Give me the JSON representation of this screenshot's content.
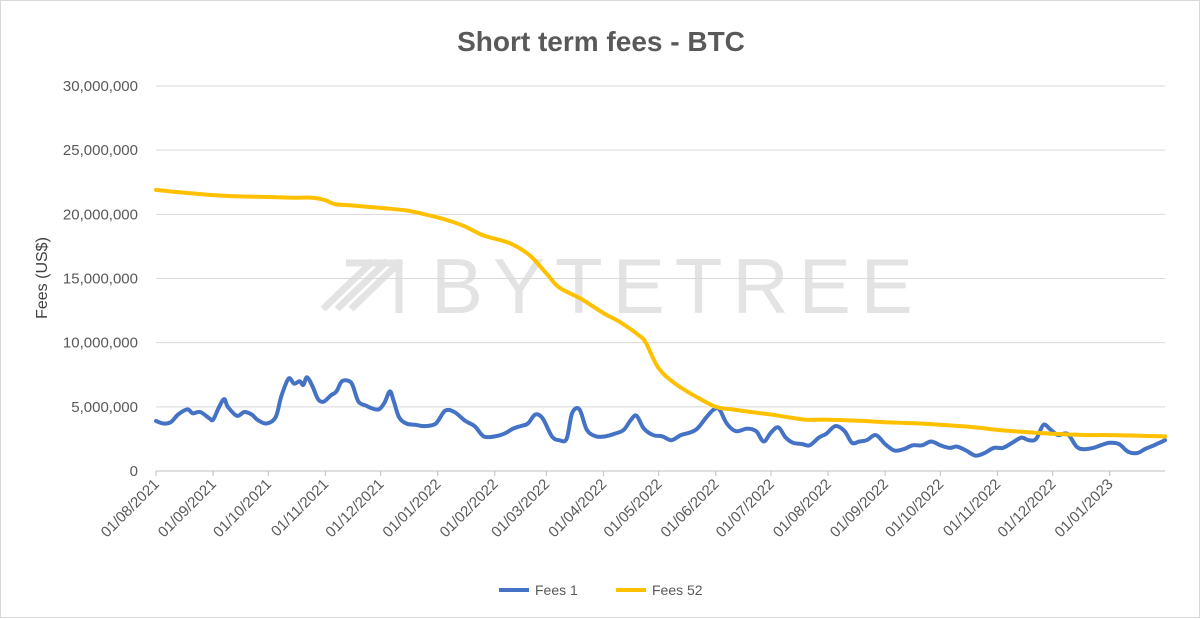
{
  "chart_data": {
    "type": "line",
    "title": "Short term fees - BTC",
    "xlabel": "",
    "ylabel": "Fees (US$)",
    "ylim": [
      0,
      30000000
    ],
    "yticks": [
      0,
      5000000,
      10000000,
      15000000,
      20000000,
      25000000,
      30000000
    ],
    "ytick_labels": [
      "0",
      "5,000,000",
      "10,000,000",
      "15,000,000",
      "20,000,000",
      "25,000,000",
      "30,000,000"
    ],
    "xlim": [
      "2021-08-01",
      "2023-01-31"
    ],
    "xticks": [
      "2021-08-01",
      "2021-09-01",
      "2021-10-01",
      "2021-11-01",
      "2021-12-01",
      "2022-01-01",
      "2022-02-01",
      "2022-03-01",
      "2022-04-01",
      "2022-05-01",
      "2022-06-01",
      "2022-07-01",
      "2022-08-01",
      "2022-09-01",
      "2022-10-01",
      "2022-11-01",
      "2022-12-01",
      "2023-01-01"
    ],
    "xtick_labels": [
      "01/08/2021",
      "01/09/2021",
      "01/10/2021",
      "01/11/2021",
      "01/12/2021",
      "01/01/2022",
      "01/02/2022",
      "01/03/2022",
      "01/04/2022",
      "01/05/2022",
      "01/06/2022",
      "01/07/2022",
      "01/08/2022",
      "01/09/2022",
      "01/10/2022",
      "01/11/2022",
      "01/12/2022",
      "01/01/2023"
    ],
    "grid": "horizontal",
    "legend": "bottom",
    "watermark": "BYTETREE",
    "series": [
      {
        "name": "Fees 1",
        "color": "#4472c4",
        "points": [
          [
            "2021-08-01",
            3900000
          ],
          [
            "2021-08-05",
            3700000
          ],
          [
            "2021-08-09",
            3800000
          ],
          [
            "2021-08-13",
            4400000
          ],
          [
            "2021-08-18",
            4800000
          ],
          [
            "2021-08-21",
            4500000
          ],
          [
            "2021-08-25",
            4600000
          ],
          [
            "2021-08-30",
            4100000
          ],
          [
            "2021-09-01",
            4000000
          ],
          [
            "2021-09-04",
            4900000
          ],
          [
            "2021-09-07",
            5600000
          ],
          [
            "2021-09-09",
            5000000
          ],
          [
            "2021-09-14",
            4300000
          ],
          [
            "2021-09-18",
            4600000
          ],
          [
            "2021-09-22",
            4400000
          ],
          [
            "2021-09-25",
            4000000
          ],
          [
            "2021-09-30",
            3700000
          ],
          [
            "2021-10-05",
            4200000
          ],
          [
            "2021-10-08",
            5800000
          ],
          [
            "2021-10-12",
            7200000
          ],
          [
            "2021-10-15",
            6800000
          ],
          [
            "2021-10-18",
            7000000
          ],
          [
            "2021-10-20",
            6700000
          ],
          [
            "2021-10-22",
            7300000
          ],
          [
            "2021-10-25",
            6600000
          ],
          [
            "2021-10-28",
            5600000
          ],
          [
            "2021-10-31",
            5400000
          ],
          [
            "2021-11-04",
            5900000
          ],
          [
            "2021-11-07",
            6200000
          ],
          [
            "2021-11-10",
            7000000
          ],
          [
            "2021-11-14",
            7000000
          ],
          [
            "2021-11-16",
            6600000
          ],
          [
            "2021-11-19",
            5400000
          ],
          [
            "2021-11-23",
            5100000
          ],
          [
            "2021-11-26",
            4900000
          ],
          [
            "2021-11-30",
            4800000
          ],
          [
            "2021-12-03",
            5300000
          ],
          [
            "2021-12-06",
            6200000
          ],
          [
            "2021-12-08",
            5500000
          ],
          [
            "2021-12-11",
            4200000
          ],
          [
            "2021-12-15",
            3700000
          ],
          [
            "2021-12-20",
            3600000
          ],
          [
            "2021-12-25",
            3500000
          ],
          [
            "2021-12-31",
            3700000
          ],
          [
            "2022-01-05",
            4700000
          ],
          [
            "2022-01-10",
            4600000
          ],
          [
            "2022-01-16",
            3900000
          ],
          [
            "2022-01-21",
            3500000
          ],
          [
            "2022-01-26",
            2700000
          ],
          [
            "2022-02-01",
            2700000
          ],
          [
            "2022-02-06",
            2900000
          ],
          [
            "2022-02-11",
            3300000
          ],
          [
            "2022-02-15",
            3500000
          ],
          [
            "2022-02-19",
            3700000
          ],
          [
            "2022-02-23",
            4400000
          ],
          [
            "2022-02-27",
            4100000
          ],
          [
            "2022-03-04",
            2700000
          ],
          [
            "2022-03-08",
            2400000
          ],
          [
            "2022-03-12",
            2500000
          ],
          [
            "2022-03-15",
            4500000
          ],
          [
            "2022-03-19",
            4800000
          ],
          [
            "2022-03-23",
            3200000
          ],
          [
            "2022-03-28",
            2700000
          ],
          [
            "2022-04-02",
            2700000
          ],
          [
            "2022-04-07",
            2900000
          ],
          [
            "2022-04-12",
            3200000
          ],
          [
            "2022-04-16",
            4000000
          ],
          [
            "2022-04-19",
            4300000
          ],
          [
            "2022-04-23",
            3300000
          ],
          [
            "2022-04-28",
            2800000
          ],
          [
            "2022-05-03",
            2700000
          ],
          [
            "2022-05-08",
            2400000
          ],
          [
            "2022-05-13",
            2800000
          ],
          [
            "2022-05-18",
            3000000
          ],
          [
            "2022-05-22",
            3300000
          ],
          [
            "2022-05-27",
            4200000
          ],
          [
            "2022-05-31",
            4800000
          ],
          [
            "2022-06-03",
            4800000
          ],
          [
            "2022-06-07",
            3700000
          ],
          [
            "2022-06-12",
            3100000
          ],
          [
            "2022-06-18",
            3300000
          ],
          [
            "2022-06-23",
            3100000
          ],
          [
            "2022-06-27",
            2300000
          ],
          [
            "2022-07-01",
            3000000
          ],
          [
            "2022-07-05",
            3400000
          ],
          [
            "2022-07-09",
            2600000
          ],
          [
            "2022-07-13",
            2200000
          ],
          [
            "2022-07-18",
            2100000
          ],
          [
            "2022-07-22",
            2000000
          ],
          [
            "2022-07-27",
            2600000
          ],
          [
            "2022-07-31",
            2900000
          ],
          [
            "2022-08-05",
            3500000
          ],
          [
            "2022-08-10",
            3100000
          ],
          [
            "2022-08-14",
            2200000
          ],
          [
            "2022-08-18",
            2300000
          ],
          [
            "2022-08-22",
            2400000
          ],
          [
            "2022-08-27",
            2800000
          ],
          [
            "2022-09-01",
            2100000
          ],
          [
            "2022-09-06",
            1600000
          ],
          [
            "2022-09-11",
            1700000
          ],
          [
            "2022-09-16",
            2000000
          ],
          [
            "2022-09-21",
            2000000
          ],
          [
            "2022-09-26",
            2300000
          ],
          [
            "2022-10-01",
            2000000
          ],
          [
            "2022-10-06",
            1800000
          ],
          [
            "2022-10-10",
            1900000
          ],
          [
            "2022-10-15",
            1600000
          ],
          [
            "2022-10-20",
            1200000
          ],
          [
            "2022-10-25",
            1400000
          ],
          [
            "2022-10-30",
            1800000
          ],
          [
            "2022-11-04",
            1800000
          ],
          [
            "2022-11-09",
            2200000
          ],
          [
            "2022-11-14",
            2600000
          ],
          [
            "2022-11-18",
            2400000
          ],
          [
            "2022-11-22",
            2500000
          ],
          [
            "2022-11-26",
            3600000
          ],
          [
            "2022-11-30",
            3200000
          ],
          [
            "2022-12-04",
            2800000
          ],
          [
            "2022-12-09",
            2900000
          ],
          [
            "2022-12-14",
            1900000
          ],
          [
            "2022-12-18",
            1700000
          ],
          [
            "2022-12-23",
            1800000
          ],
          [
            "2022-12-27",
            2000000
          ],
          [
            "2023-01-01",
            2200000
          ],
          [
            "2023-01-06",
            2100000
          ],
          [
            "2023-01-11",
            1500000
          ],
          [
            "2023-01-16",
            1400000
          ],
          [
            "2023-01-20",
            1700000
          ],
          [
            "2023-01-25",
            2000000
          ],
          [
            "2023-01-31",
            2400000
          ]
        ]
      },
      {
        "name": "Fees 52",
        "color": "#ffc000",
        "points": [
          [
            "2021-08-01",
            21900000
          ],
          [
            "2021-08-15",
            21700000
          ],
          [
            "2021-09-01",
            21500000
          ],
          [
            "2021-09-15",
            21400000
          ],
          [
            "2021-10-01",
            21350000
          ],
          [
            "2021-10-15",
            21300000
          ],
          [
            "2021-10-25",
            21300000
          ],
          [
            "2021-11-01",
            21100000
          ],
          [
            "2021-11-06",
            20800000
          ],
          [
            "2021-11-15",
            20700000
          ],
          [
            "2021-12-01",
            20500000
          ],
          [
            "2021-12-15",
            20300000
          ],
          [
            "2021-12-25",
            20000000
          ],
          [
            "2022-01-05",
            19600000
          ],
          [
            "2022-01-15",
            19100000
          ],
          [
            "2022-01-25",
            18400000
          ],
          [
            "2022-02-01",
            18100000
          ],
          [
            "2022-02-10",
            17700000
          ],
          [
            "2022-02-20",
            16800000
          ],
          [
            "2022-03-01",
            15400000
          ],
          [
            "2022-03-08",
            14300000
          ],
          [
            "2022-03-20",
            13400000
          ],
          [
            "2022-04-01",
            12300000
          ],
          [
            "2022-04-10",
            11600000
          ],
          [
            "2022-04-20",
            10600000
          ],
          [
            "2022-04-24",
            10000000
          ],
          [
            "2022-05-01",
            8000000
          ],
          [
            "2022-05-10",
            6800000
          ],
          [
            "2022-05-20",
            5900000
          ],
          [
            "2022-06-01",
            5000000
          ],
          [
            "2022-06-10",
            4800000
          ],
          [
            "2022-06-20",
            4600000
          ],
          [
            "2022-07-01",
            4400000
          ],
          [
            "2022-07-10",
            4200000
          ],
          [
            "2022-07-20",
            4000000
          ],
          [
            "2022-08-01",
            4000000
          ],
          [
            "2022-08-20",
            3900000
          ],
          [
            "2022-09-01",
            3800000
          ],
          [
            "2022-09-20",
            3700000
          ],
          [
            "2022-10-01",
            3600000
          ],
          [
            "2022-10-20",
            3400000
          ],
          [
            "2022-11-01",
            3200000
          ],
          [
            "2022-11-20",
            3000000
          ],
          [
            "2022-12-01",
            2900000
          ],
          [
            "2022-12-20",
            2800000
          ],
          [
            "2023-01-01",
            2800000
          ],
          [
            "2023-01-31",
            2700000
          ]
        ]
      }
    ]
  }
}
